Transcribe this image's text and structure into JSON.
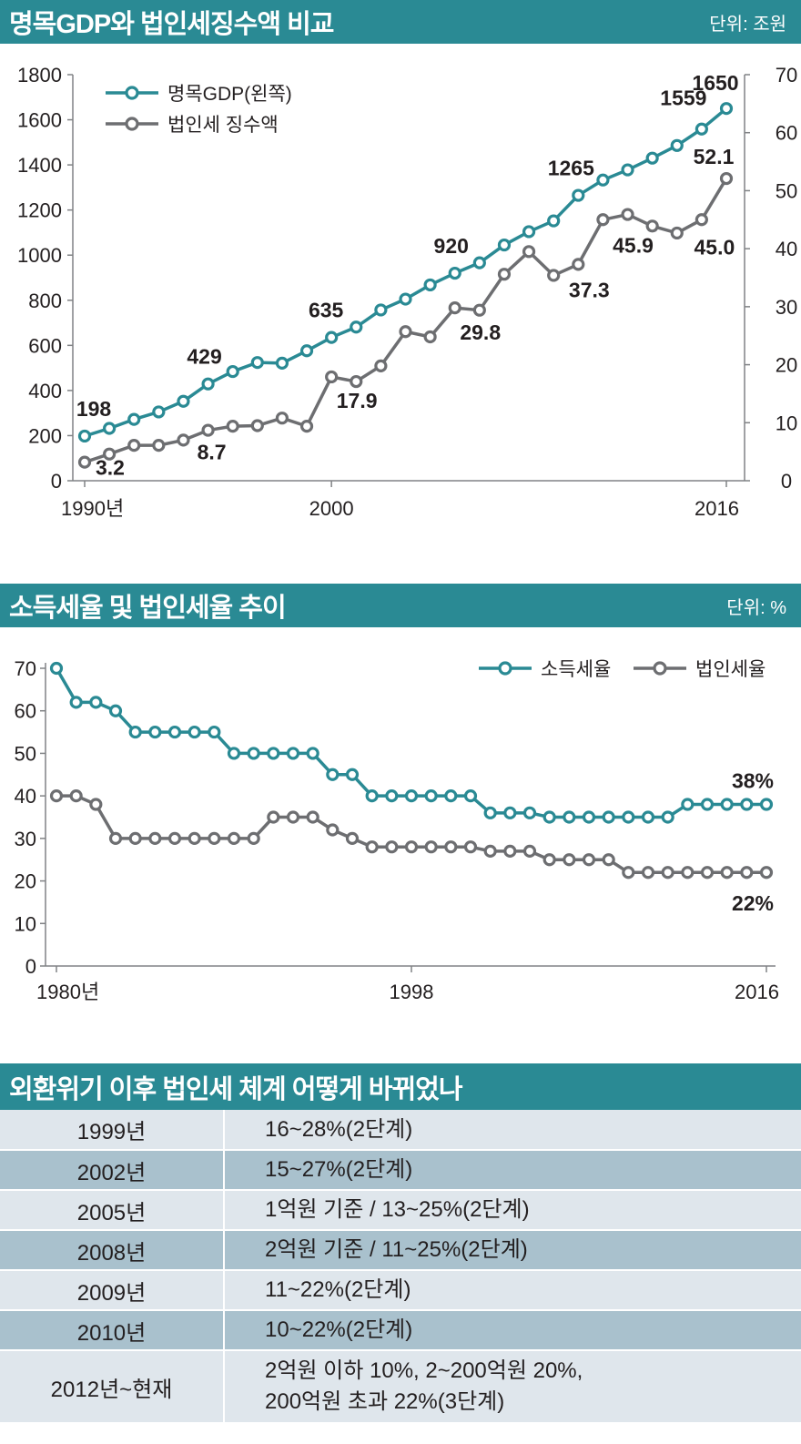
{
  "section1": {
    "title": "명목GDP와 법인세징수액 비교",
    "unit": "단위: 조원"
  },
  "section2": {
    "title": "소득세율 및 법인세율 추이",
    "unit": "단위: %"
  },
  "section3": {
    "title": "외환위기 이후 법인세 체계 어떻게 바뀌었나",
    "rows": [
      {
        "year": "1999년",
        "lines": [
          "16~28%(2단계)"
        ]
      },
      {
        "year": "2002년",
        "lines": [
          "15~27%(2단계)"
        ]
      },
      {
        "year": "2005년",
        "lines": [
          "1억원 기준 / 13~25%(2단계)"
        ]
      },
      {
        "year": "2008년",
        "lines": [
          "2억원 기준 / 11~25%(2단계)"
        ]
      },
      {
        "year": "2009년",
        "lines": [
          "11~22%(2단계)"
        ]
      },
      {
        "year": "2010년",
        "lines": [
          "10~22%(2단계)"
        ]
      },
      {
        "year": "2012년~현재",
        "lines": [
          "2억원 이하 10%, 2~200억원 20%,",
          "200억원 초과 22%(3단계)"
        ]
      }
    ]
  },
  "colors": {
    "teal": "#2a8a94",
    "gray": "#6d6e71",
    "row_light": "#dfe6ec",
    "row_dark": "#a9c1cd"
  },
  "chart_data": [
    {
      "type": "line",
      "x": [
        1990,
        1991,
        1992,
        1993,
        1994,
        1995,
        1996,
        1997,
        1998,
        1999,
        2000,
        2001,
        2002,
        2003,
        2004,
        2005,
        2006,
        2007,
        2008,
        2009,
        2010,
        2011,
        2012,
        2013,
        2014,
        2015,
        2016
      ],
      "x_tick_labels": [
        "1990년",
        "2000",
        "2016"
      ],
      "x_ticks": [
        1990,
        2000,
        2016
      ],
      "left_axis": {
        "ylim": [
          0,
          1800
        ],
        "ticks": [
          "0",
          "200",
          "400",
          "600",
          "800",
          "1000",
          "1200",
          "1400",
          "1600",
          "1800"
        ]
      },
      "right_axis": {
        "ylim": [
          0,
          70
        ],
        "ticks": [
          "0",
          "10",
          "20",
          "30",
          "40",
          "50",
          "60",
          "70"
        ]
      },
      "legend_position": "top-left",
      "series": [
        {
          "name": "명목GDP(왼쪽)",
          "axis": "left",
          "color": "#2a8a94",
          "values": [
            198,
            232,
            272,
            305,
            352,
            429,
            484,
            524,
            521,
            576,
            635,
            681,
            757,
            805,
            868,
            920,
            966,
            1045,
            1104,
            1152,
            1265,
            1333,
            1378,
            1430,
            1486,
            1559,
            1650
          ],
          "labels": [
            {
              "x": 1990,
              "text": "198"
            },
            {
              "x": 1995,
              "text": "429"
            },
            {
              "x": 2000,
              "text": "635"
            },
            {
              "x": 2005,
              "text": "920"
            },
            {
              "x": 2010,
              "text": "1265"
            },
            {
              "x": 2015,
              "text": "1559"
            },
            {
              "x": 2016,
              "text": "1650"
            }
          ]
        },
        {
          "name": "법인세 징수액",
          "axis": "right",
          "color": "#6d6e71",
          "values": [
            3.2,
            4.6,
            6.1,
            6.1,
            7.0,
            8.7,
            9.4,
            9.5,
            10.8,
            9.4,
            17.9,
            17.1,
            19.8,
            25.7,
            24.8,
            29.8,
            29.4,
            35.6,
            39.5,
            35.4,
            37.3,
            45.0,
            45.9,
            43.9,
            42.7,
            45.0,
            52.1
          ],
          "labels": [
            {
              "x": 1990,
              "text": "3.2"
            },
            {
              "x": 1995,
              "text": "8.7"
            },
            {
              "x": 2000,
              "text": "17.9"
            },
            {
              "x": 2005,
              "text": "29.8"
            },
            {
              "x": 2010,
              "text": "37.3"
            },
            {
              "x": 2012,
              "text": "45.9"
            },
            {
              "x": 2015,
              "text": "45.0"
            },
            {
              "x": 2016,
              "text": "52.1"
            }
          ]
        }
      ]
    },
    {
      "type": "line",
      "x": [
        1980,
        1981,
        1982,
        1983,
        1984,
        1985,
        1986,
        1987,
        1988,
        1989,
        1990,
        1991,
        1992,
        1993,
        1994,
        1995,
        1996,
        1997,
        1998,
        1999,
        2000,
        2001,
        2002,
        2003,
        2004,
        2005,
        2006,
        2007,
        2008,
        2009,
        2010,
        2011,
        2012,
        2013,
        2014,
        2015,
        2016
      ],
      "x_tick_labels": [
        "1980년",
        "1998",
        "2016"
      ],
      "x_ticks": [
        1980,
        1998,
        2016
      ],
      "ylim": [
        0,
        70
      ],
      "y_ticks": [
        "0",
        "10",
        "20",
        "30",
        "40",
        "50",
        "60",
        "70"
      ],
      "legend_position": "top-right",
      "series": [
        {
          "name": "소득세율",
          "color": "#2a8a94",
          "values": [
            70,
            62,
            62,
            60,
            55,
            55,
            55,
            55,
            55,
            50,
            50,
            50,
            50,
            50,
            45,
            45,
            40,
            40,
            40,
            40,
            40,
            40,
            36,
            36,
            36,
            35,
            35,
            35,
            35,
            35,
            35,
            35,
            38,
            38,
            38,
            38,
            38
          ],
          "labels": [
            {
              "x": 2016,
              "text": "38%"
            }
          ]
        },
        {
          "name": "법인세율",
          "color": "#6d6e71",
          "values": [
            40,
            40,
            38,
            30,
            30,
            30,
            30,
            30,
            30,
            30,
            30,
            35,
            35,
            35,
            32,
            30,
            28,
            28,
            28,
            28,
            28,
            28,
            27,
            27,
            27,
            25,
            25,
            25,
            25,
            22,
            22,
            22,
            22,
            22,
            22,
            22,
            22
          ],
          "labels": [
            {
              "x": 2016,
              "text": "22%"
            }
          ]
        }
      ]
    }
  ]
}
